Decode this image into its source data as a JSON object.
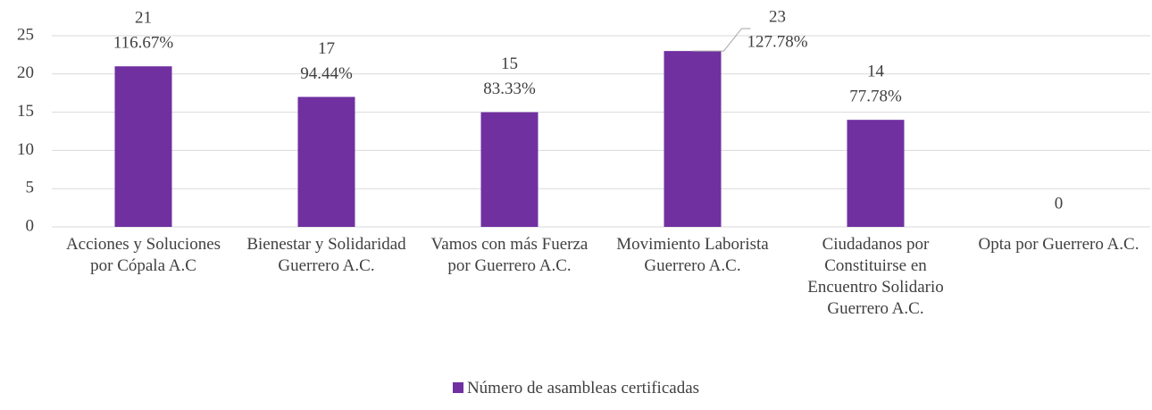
{
  "chart_data": {
    "type": "bar",
    "categories": [
      "Acciones y Soluciones por Cópala A.C",
      "Bienestar y Solidaridad Guerrero A.C.",
      "Vamos con más Fuerza por Guerrero A.C.",
      "Movimiento Laborista Guerrero A.C.",
      "Ciudadanos por Constituirse en Encuentro Solidario Guerrero A.C.",
      "Opta por Guerrero A.C."
    ],
    "series": [
      {
        "name": "Número de asambleas certificadas",
        "color": "#7030a0",
        "values": [
          21,
          17,
          15,
          23,
          14,
          0
        ],
        "percentages": [
          116.67,
          94.44,
          83.33,
          127.78,
          77.78,
          null
        ],
        "percentage_labels": [
          "116.67%",
          "94.44%",
          "83.33%",
          "127.78%",
          "77.78%",
          null
        ]
      }
    ],
    "ylim": [
      0,
      25
    ],
    "yticks": [
      0,
      5,
      10,
      15,
      20,
      25
    ],
    "grid": true,
    "legend": "bottom"
  }
}
